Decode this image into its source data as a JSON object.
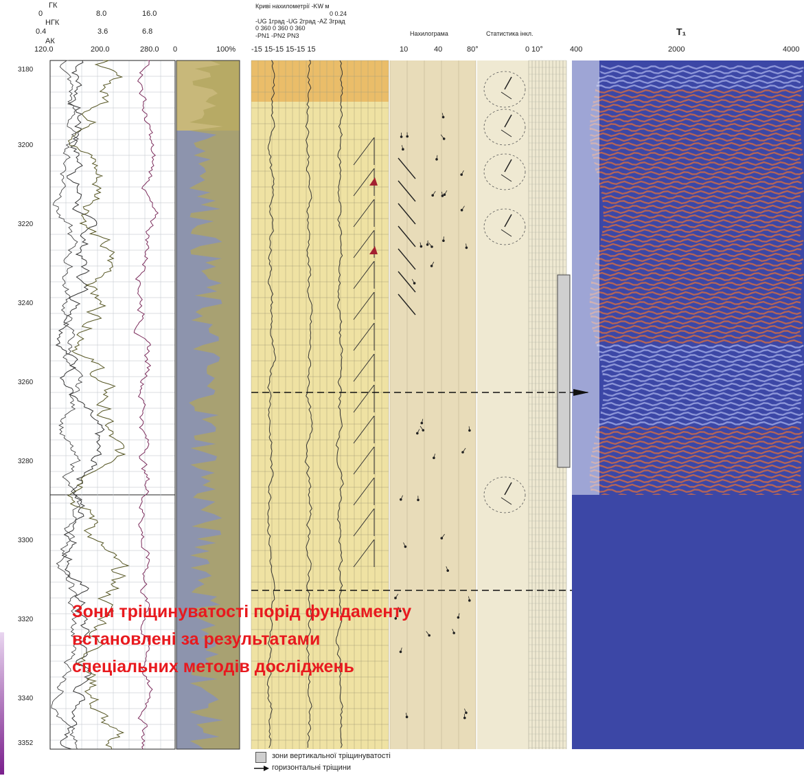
{
  "header": {
    "gk": "ГК",
    "ngk": "НГК",
    "ak": "АК",
    "row1": [
      "0",
      "8.0",
      "16.0"
    ],
    "row2": [
      "0.4",
      "3.6",
      "6.8"
    ],
    "row3": [
      "120.0",
      "200.0",
      "280.0"
    ],
    "pct_scale": [
      "0",
      "100%"
    ],
    "incl_title": "Криві нахилометрії -KW м",
    "incl_sub1": "0        0.24",
    "incl_sub2": "-UG 1град -UG 2град -AZ 3град",
    "incl_sub3": "0   360 0    360 0    360",
    "incl_sub4": "-PN1    -PN2    PN3",
    "incl_scale": "-15  15-15  15-15  15",
    "nakhylohrama": "Нахилограма",
    "nakhylo_scale": [
      "10",
      "40",
      "80°"
    ],
    "statystyka": "Статистика  інкл.",
    "stat_scale": "0  10°",
    "t1": "T₁",
    "t1_scale": [
      "400",
      "2000",
      "4000"
    ]
  },
  "depths": [
    "3180",
    "3200",
    "3220",
    "3240",
    "3260",
    "3280",
    "3300",
    "3320",
    "3340",
    "3352"
  ],
  "caption": {
    "line1": "Зони  тріщинуватості порід фундаменту",
    "line2": "встановлені за результатами",
    "line3": "спеціальних методів досліджень"
  },
  "legend": {
    "vertical_zones": "зони вертикальної тріщинуватості",
    "horizontal_cracks": "горизонтальні тріщини"
  },
  "colors": {
    "caption": "#e8191e",
    "log_paper": "#f3f0e6",
    "grey_track": "#7d86a0",
    "yellow_track": "#efe2a3",
    "wave_red": "#a23a3a",
    "wave_blue": "#3d4aa8"
  }
}
